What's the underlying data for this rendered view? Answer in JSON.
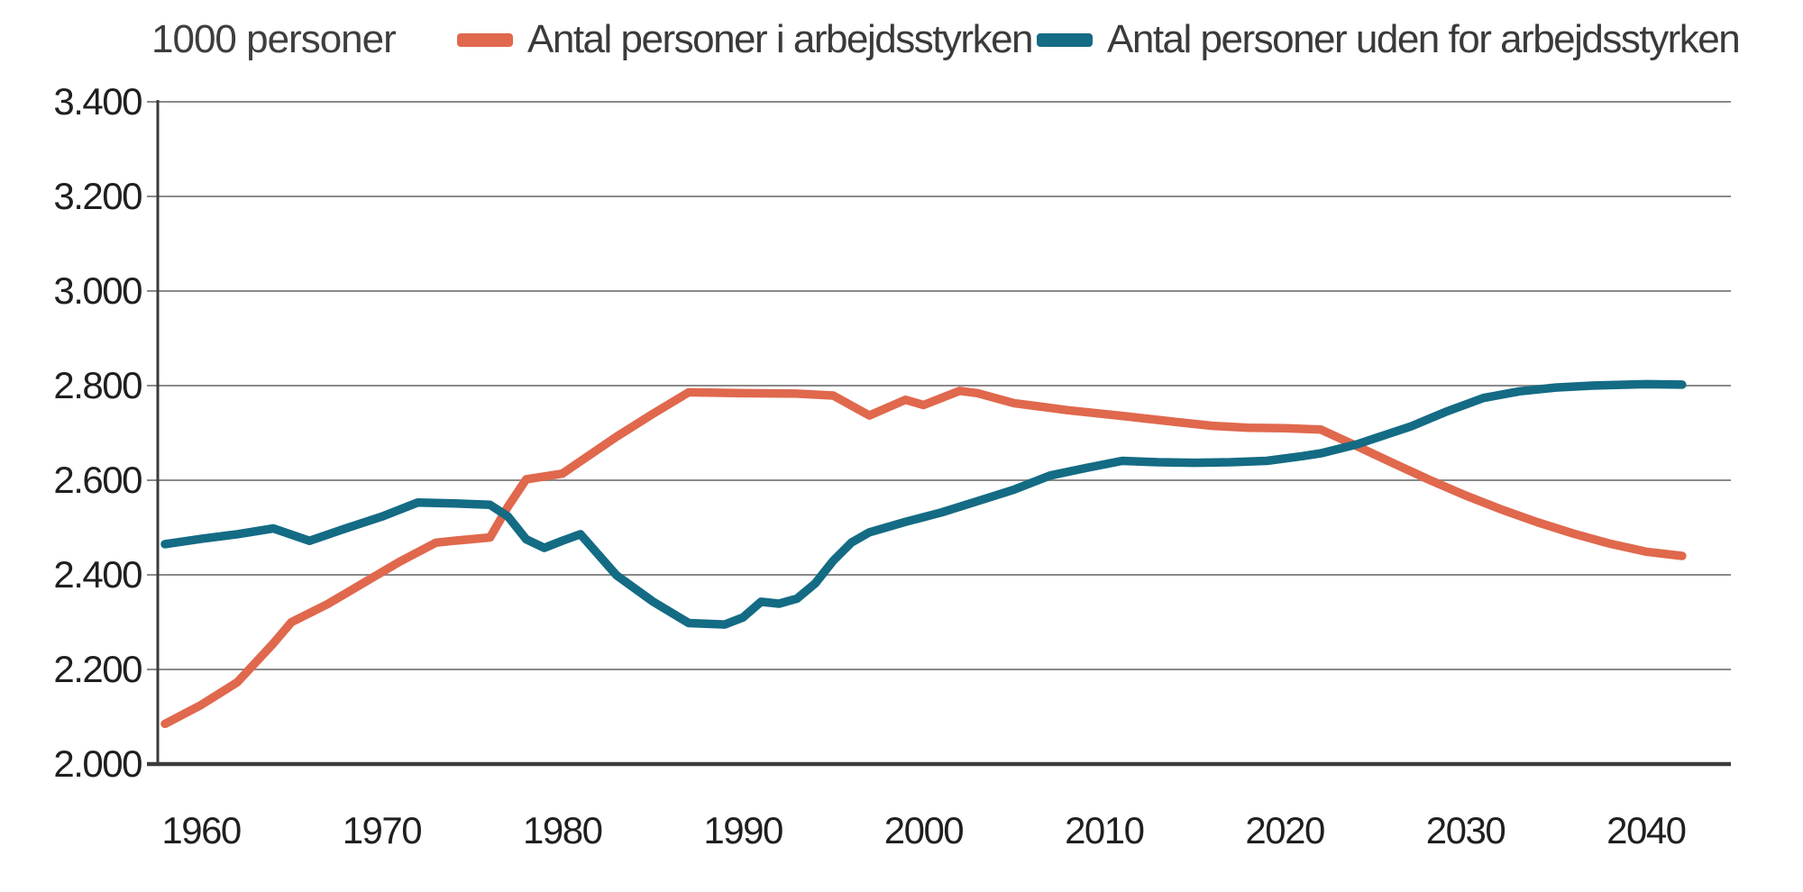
{
  "chart_data": {
    "type": "line",
    "title": "",
    "ylabel": "1000 personer",
    "xlabel": "",
    "xlim": [
      1957.6,
      2044.7
    ],
    "ylim": [
      2000,
      3400
    ],
    "grid": true,
    "legend_position": "top",
    "x_ticks": {
      "values": [
        1960,
        1970,
        1980,
        1990,
        2000,
        2010,
        2020,
        2030,
        2040
      ],
      "labels": [
        "1960",
        "1970",
        "1980",
        "1990",
        "2000",
        "2010",
        "2020",
        "2030",
        "2040"
      ]
    },
    "y_ticks": {
      "values": [
        2000,
        2200,
        2400,
        2600,
        2800,
        3000,
        3200,
        3400
      ],
      "labels": [
        "2.000",
        "2.200",
        "2.400",
        "2.600",
        "2.800",
        "3.000",
        "3.200",
        "3.400"
      ]
    },
    "series": [
      {
        "key": "arbejdsstyrken",
        "name": "Antal personer i arbejdsstyrken",
        "color": "#e0684d",
        "points": [
          [
            1958,
            2085
          ],
          [
            1960,
            2125
          ],
          [
            1962,
            2173
          ],
          [
            1964,
            2255
          ],
          [
            1965,
            2300
          ],
          [
            1967,
            2338
          ],
          [
            1969,
            2383
          ],
          [
            1971,
            2428
          ],
          [
            1973,
            2468
          ],
          [
            1974,
            2472
          ],
          [
            1976,
            2479
          ],
          [
            1977,
            2545
          ],
          [
            1978,
            2602
          ],
          [
            1980,
            2614
          ],
          [
            1981,
            2640
          ],
          [
            1983,
            2692
          ],
          [
            1985,
            2740
          ],
          [
            1987,
            2786
          ],
          [
            1990,
            2784
          ],
          [
            1993,
            2783
          ],
          [
            1995,
            2779
          ],
          [
            1997,
            2737
          ],
          [
            1999,
            2770
          ],
          [
            2000,
            2759
          ],
          [
            2002,
            2789
          ],
          [
            2003,
            2784
          ],
          [
            2005,
            2763
          ],
          [
            2008,
            2748
          ],
          [
            2011,
            2736
          ],
          [
            2014,
            2723
          ],
          [
            2016,
            2715
          ],
          [
            2018,
            2711
          ],
          [
            2020,
            2710
          ],
          [
            2022,
            2707
          ],
          [
            2024,
            2672
          ],
          [
            2026,
            2636
          ],
          [
            2028,
            2601
          ],
          [
            2030,
            2568
          ],
          [
            2032,
            2538
          ],
          [
            2034,
            2511
          ],
          [
            2036,
            2487
          ],
          [
            2038,
            2466
          ],
          [
            2040,
            2449
          ],
          [
            2042,
            2440
          ]
        ]
      },
      {
        "key": "uden-for-arbejdsstyrken",
        "name": "Antal personer uden for arbejdsstyrken",
        "color": "#146b84",
        "points": [
          [
            1958,
            2465
          ],
          [
            1960,
            2476
          ],
          [
            1962,
            2486
          ],
          [
            1964,
            2498
          ],
          [
            1966,
            2472
          ],
          [
            1968,
            2498
          ],
          [
            1970,
            2523
          ],
          [
            1972,
            2553
          ],
          [
            1974,
            2551
          ],
          [
            1976,
            2548
          ],
          [
            1977,
            2523
          ],
          [
            1978,
            2475
          ],
          [
            1979,
            2457
          ],
          [
            1980,
            2472
          ],
          [
            1981,
            2486
          ],
          [
            1983,
            2399
          ],
          [
            1985,
            2344
          ],
          [
            1987,
            2298
          ],
          [
            1989,
            2295
          ],
          [
            1990,
            2310
          ],
          [
            1991,
            2343
          ],
          [
            1992,
            2339
          ],
          [
            1993,
            2350
          ],
          [
            1994,
            2382
          ],
          [
            1995,
            2430
          ],
          [
            1996,
            2468
          ],
          [
            1997,
            2490
          ],
          [
            1999,
            2512
          ],
          [
            2001,
            2532
          ],
          [
            2003,
            2556
          ],
          [
            2005,
            2580
          ],
          [
            2007,
            2610
          ],
          [
            2009,
            2626
          ],
          [
            2011,
            2641
          ],
          [
            2013,
            2638
          ],
          [
            2015,
            2637
          ],
          [
            2017,
            2638
          ],
          [
            2019,
            2641
          ],
          [
            2021,
            2651
          ],
          [
            2022,
            2657
          ],
          [
            2024,
            2676
          ],
          [
            2027,
            2714
          ],
          [
            2029,
            2746
          ],
          [
            2031,
            2774
          ],
          [
            2033,
            2788
          ],
          [
            2035,
            2796
          ],
          [
            2037,
            2800
          ],
          [
            2040,
            2803
          ],
          [
            2042,
            2802
          ]
        ]
      }
    ],
    "colors": {
      "grid": "#8a8a8a",
      "axis": "#3b3b3b",
      "tick_text": "#1f1f1f",
      "header_text": "#3e3e3e"
    }
  }
}
